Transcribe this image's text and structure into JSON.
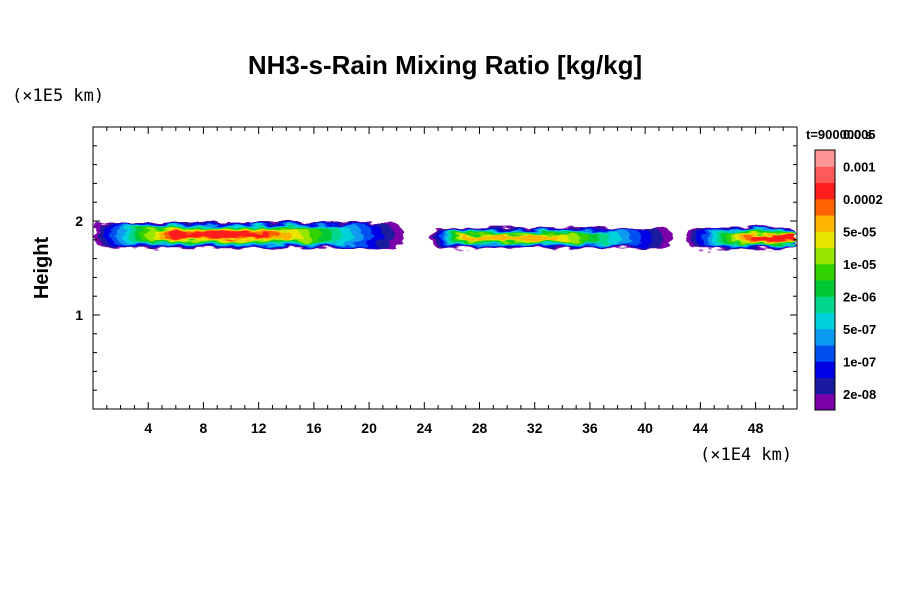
{
  "chart_data": {
    "type": "heatmap",
    "title": "NH3-s-Rain Mixing Ratio [kg/kg]",
    "ylabel": "Height",
    "x_unit": "(×1E4 km)",
    "y_unit": "(×1E5 km)",
    "time_label": "t=900000 s",
    "xlim": [
      0,
      51
    ],
    "ylim": [
      0,
      3
    ],
    "x_ticks": [
      4,
      8,
      12,
      16,
      20,
      24,
      28,
      32,
      36,
      40,
      44,
      48
    ],
    "x_tick_labels": [
      "4",
      "8",
      "12",
      "16",
      "20",
      "24",
      "28",
      "32",
      "36",
      "40",
      "44",
      "48"
    ],
    "y_ticks": [
      1,
      2
    ],
    "y_tick_labels": [
      "1",
      "2"
    ],
    "colorbar": {
      "colors": [
        "#7a00a8",
        "#1a1aa0",
        "#0000e6",
        "#0050f0",
        "#0a9af0",
        "#00d2dc",
        "#00d78c",
        "#00c832",
        "#32d200",
        "#96e600",
        "#e6e600",
        "#ffb400",
        "#ff6400",
        "#ff1e1e",
        "#ff5a5a",
        "#ff9696"
      ],
      "labels": [
        "2e-08",
        "1e-07",
        "5e-07",
        "2e-06",
        "1e-05",
        "5e-05",
        "0.0002",
        "0.001",
        "0.005"
      ]
    },
    "bands": [
      {
        "x": [
          0,
          22.5
        ],
        "y_center": 1.85,
        "height": 0.28,
        "peak": "0.0002",
        "peak_x": [
          6,
          12
        ]
      },
      {
        "x": [
          24.5,
          42
        ],
        "y_center": 1.82,
        "height": 0.22,
        "peak": "5e-05",
        "peak_x": [
          27,
          33
        ]
      },
      {
        "x": [
          43,
          51
        ],
        "y_center": 1.82,
        "height": 0.24,
        "peak": "0.0002",
        "peak_x": [
          48,
          51
        ]
      }
    ]
  }
}
